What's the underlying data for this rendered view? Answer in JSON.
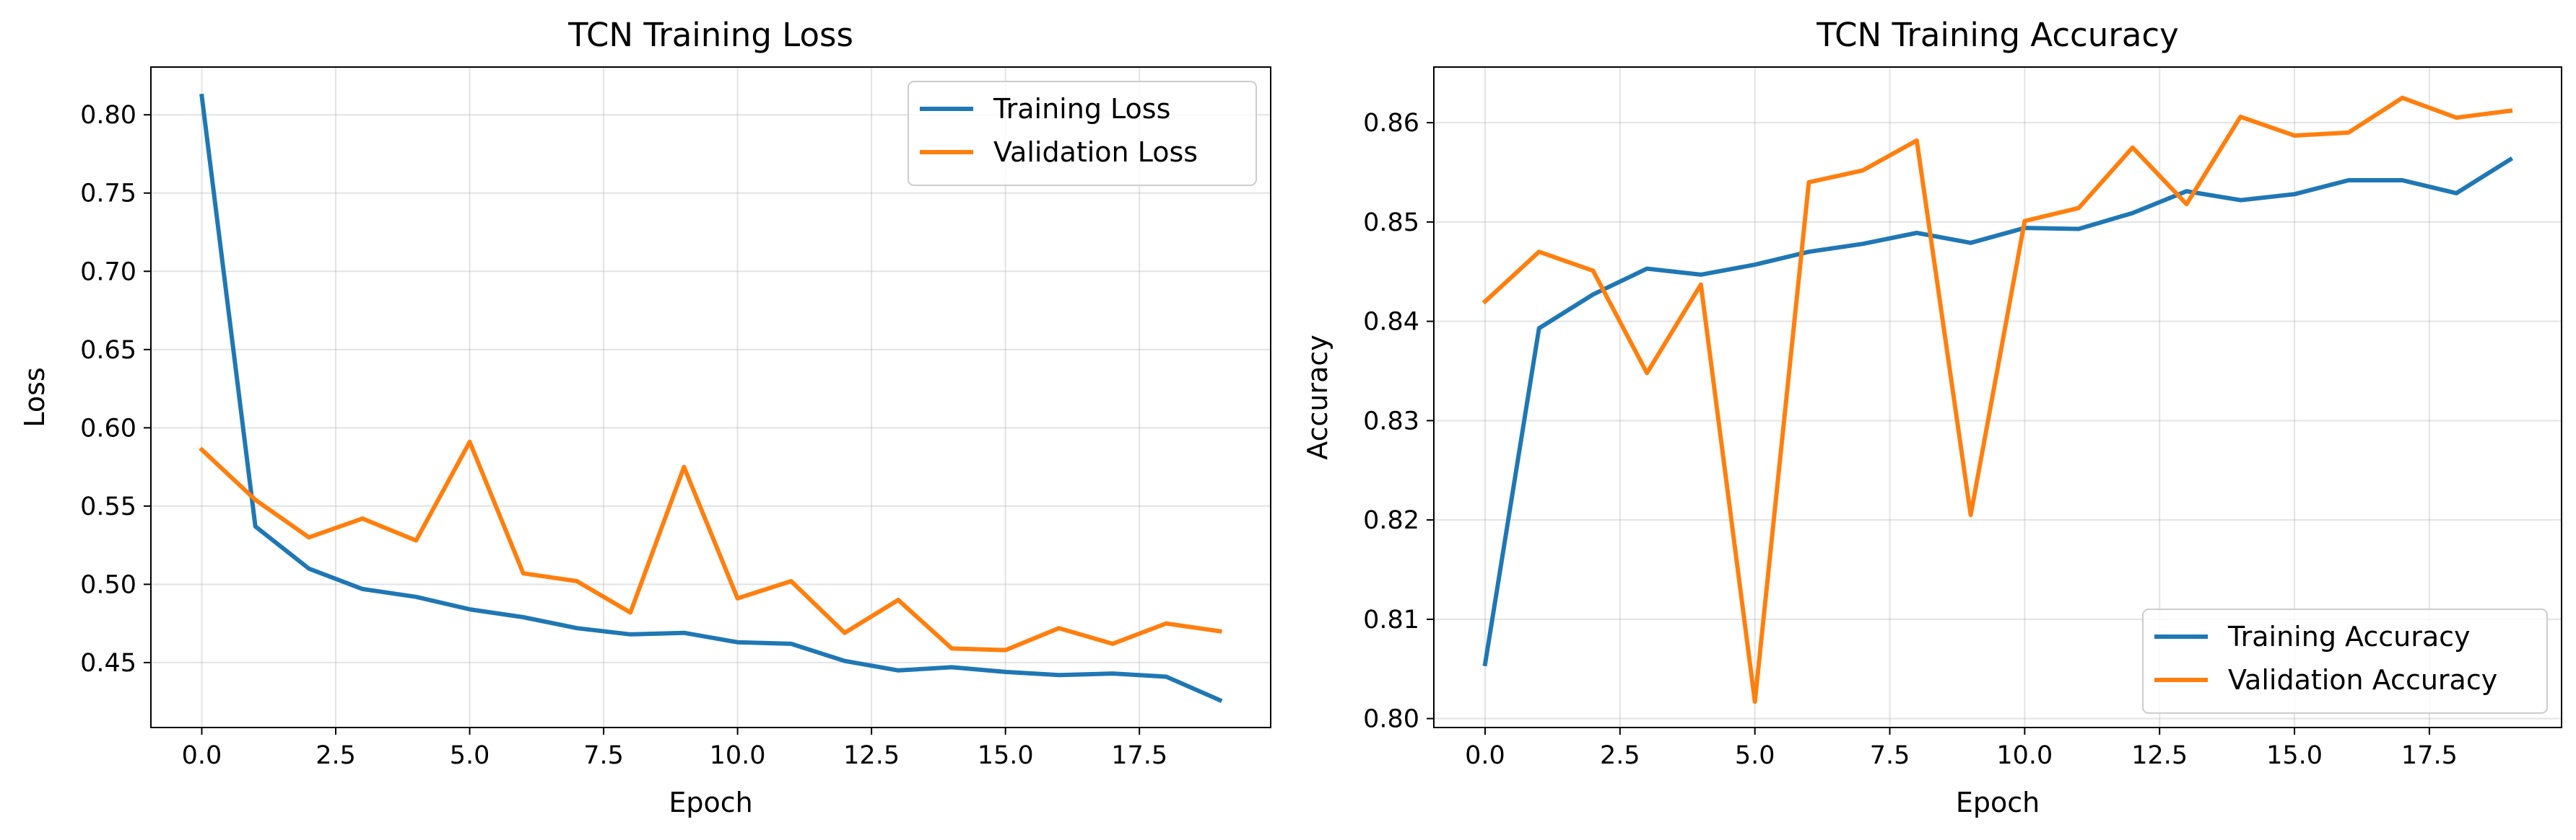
{
  "chart_data": [
    {
      "type": "line",
      "title": "TCN Training Loss",
      "xlabel": "Epoch",
      "ylabel": "Loss",
      "xlim": [
        -0.95,
        19.95
      ],
      "ylim": [
        0.4085,
        0.8305
      ],
      "xticks": [
        0,
        2.5,
        5,
        7.5,
        10,
        12.5,
        15,
        17.5
      ],
      "xtick_labels": [
        "0.0",
        "2.5",
        "5.0",
        "7.5",
        "10.0",
        "12.5",
        "15.0",
        "17.5"
      ],
      "yticks": [
        0.45,
        0.5,
        0.55,
        0.6,
        0.65,
        0.7,
        0.75,
        0.8
      ],
      "ytick_labels": [
        "0.45",
        "0.50",
        "0.55",
        "0.60",
        "0.65",
        "0.70",
        "0.75",
        "0.80"
      ],
      "grid": true,
      "legend_position": "upper-right",
      "x": [
        0,
        1,
        2,
        3,
        4,
        5,
        6,
        7,
        8,
        9,
        10,
        11,
        12,
        13,
        14,
        15,
        16,
        17,
        18,
        19
      ],
      "series": [
        {
          "name": "Training Loss",
          "color": "#1f77b4",
          "values": [
            0.812,
            0.537,
            0.51,
            0.497,
            0.492,
            0.484,
            0.479,
            0.472,
            0.468,
            0.469,
            0.463,
            0.462,
            0.451,
            0.445,
            0.447,
            0.444,
            0.442,
            0.443,
            0.441,
            0.426
          ]
        },
        {
          "name": "Validation Loss",
          "color": "#ff7f0e",
          "values": [
            0.586,
            0.554,
            0.53,
            0.542,
            0.528,
            0.591,
            0.507,
            0.502,
            0.482,
            0.575,
            0.491,
            0.502,
            0.469,
            0.49,
            0.459,
            0.458,
            0.472,
            0.462,
            0.475,
            0.47
          ]
        }
      ]
    },
    {
      "type": "line",
      "title": "TCN Training Accuracy",
      "xlabel": "Epoch",
      "ylabel": "Accuracy",
      "xlim": [
        -0.95,
        19.95
      ],
      "ylim": [
        0.7991,
        0.8656
      ],
      "xticks": [
        0,
        2.5,
        5,
        7.5,
        10,
        12.5,
        15,
        17.5
      ],
      "xtick_labels": [
        "0.0",
        "2.5",
        "5.0",
        "7.5",
        "10.0",
        "12.5",
        "15.0",
        "17.5"
      ],
      "yticks": [
        0.8,
        0.81,
        0.82,
        0.83,
        0.84,
        0.85,
        0.86
      ],
      "ytick_labels": [
        "0.80",
        "0.81",
        "0.82",
        "0.83",
        "0.84",
        "0.85",
        "0.86"
      ],
      "grid": true,
      "legend_position": "lower-right",
      "x": [
        0,
        1,
        2,
        3,
        4,
        5,
        6,
        7,
        8,
        9,
        10,
        11,
        12,
        13,
        14,
        15,
        16,
        17,
        18,
        19
      ],
      "series": [
        {
          "name": "Training Accuracy",
          "color": "#1f77b4",
          "values": [
            0.8055,
            0.8393,
            0.8427,
            0.8453,
            0.8447,
            0.8457,
            0.847,
            0.8478,
            0.8489,
            0.8479,
            0.8494,
            0.8493,
            0.8509,
            0.8531,
            0.8522,
            0.8528,
            0.8542,
            0.8542,
            0.8529,
            0.8563
          ]
        },
        {
          "name": "Validation Accuracy",
          "color": "#ff7f0e",
          "values": [
            0.842,
            0.847,
            0.8451,
            0.8348,
            0.8437,
            0.8017,
            0.854,
            0.8552,
            0.8582,
            0.8205,
            0.8501,
            0.8514,
            0.8575,
            0.8518,
            0.8606,
            0.8587,
            0.859,
            0.8625,
            0.8605,
            0.8612
          ]
        }
      ]
    }
  ]
}
